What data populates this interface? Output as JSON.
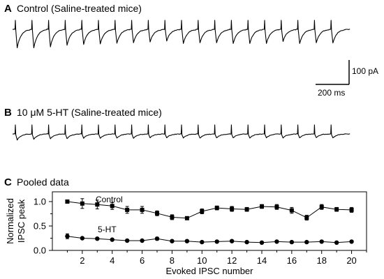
{
  "panels": {
    "a": {
      "letter": "A",
      "title": "Control (Saline-treated mice)"
    },
    "b": {
      "letter": "B",
      "title": "10 μM 5-HT (Saline-treated mice)"
    },
    "c": {
      "letter": "C",
      "title": "Pooled data"
    }
  },
  "traces": {
    "a": {
      "stimuli": 20,
      "peak_amplitudes_pA": [
        76,
        76,
        72,
        65,
        62,
        60,
        57,
        55,
        52,
        48,
        58,
        55,
        55,
        58,
        58,
        58,
        50,
        58,
        55,
        56
      ]
    },
    "b": {
      "stimuli": 20,
      "peak_amplitudes_pA": [
        25,
        22,
        20,
        19,
        18,
        18,
        17,
        18,
        16,
        16,
        17,
        17,
        16,
        16,
        17,
        16,
        17,
        16,
        15,
        16
      ]
    }
  },
  "scale_bar": {
    "current_label": "100 pA",
    "time_label": "200 ms",
    "current_pA": 100,
    "time_ms": 200
  },
  "chart_data": {
    "type": "line",
    "title": "Pooled data",
    "xlabel": "Evoked IPSC number",
    "ylabel_lines": [
      "Normalized",
      "IPSC peak"
    ],
    "xlim": [
      0,
      21
    ],
    "ylim": [
      0,
      1.2
    ],
    "xticks": [
      2,
      4,
      6,
      8,
      10,
      12,
      14,
      16,
      18,
      20
    ],
    "yticks": [
      0.0,
      0.5,
      1.0
    ],
    "ytick_labels": [
      "0.0",
      "0.5",
      "1.0"
    ],
    "grid": false,
    "x": [
      1,
      2,
      3,
      4,
      5,
      6,
      7,
      8,
      9,
      10,
      11,
      12,
      13,
      14,
      15,
      16,
      17,
      18,
      19,
      20
    ],
    "series": [
      {
        "name": "Control",
        "marker": "square",
        "values": [
          1.0,
          0.96,
          0.94,
          0.91,
          0.83,
          0.83,
          0.76,
          0.68,
          0.66,
          0.8,
          0.87,
          0.85,
          0.84,
          0.9,
          0.89,
          0.82,
          0.67,
          0.89,
          0.84,
          0.83
        ],
        "errors": [
          0.02,
          0.1,
          0.09,
          0.07,
          0.07,
          0.07,
          0.05,
          0.05,
          0.03,
          0.05,
          0.04,
          0.05,
          0.04,
          0.04,
          0.05,
          0.06,
          0.05,
          0.05,
          0.04,
          0.05
        ]
      },
      {
        "name": "5-HT",
        "marker": "circle",
        "values": [
          0.29,
          0.25,
          0.24,
          0.22,
          0.2,
          0.2,
          0.24,
          0.19,
          0.19,
          0.17,
          0.18,
          0.19,
          0.17,
          0.16,
          0.18,
          0.17,
          0.17,
          0.18,
          0.16,
          0.18
        ],
        "errors": [
          0.05,
          0.02,
          0.02,
          0.02,
          0.02,
          0.02,
          0.03,
          0.02,
          0.02,
          0.02,
          0.02,
          0.02,
          0.02,
          0.02,
          0.02,
          0.02,
          0.02,
          0.02,
          0.02,
          0.02
        ]
      }
    ]
  }
}
